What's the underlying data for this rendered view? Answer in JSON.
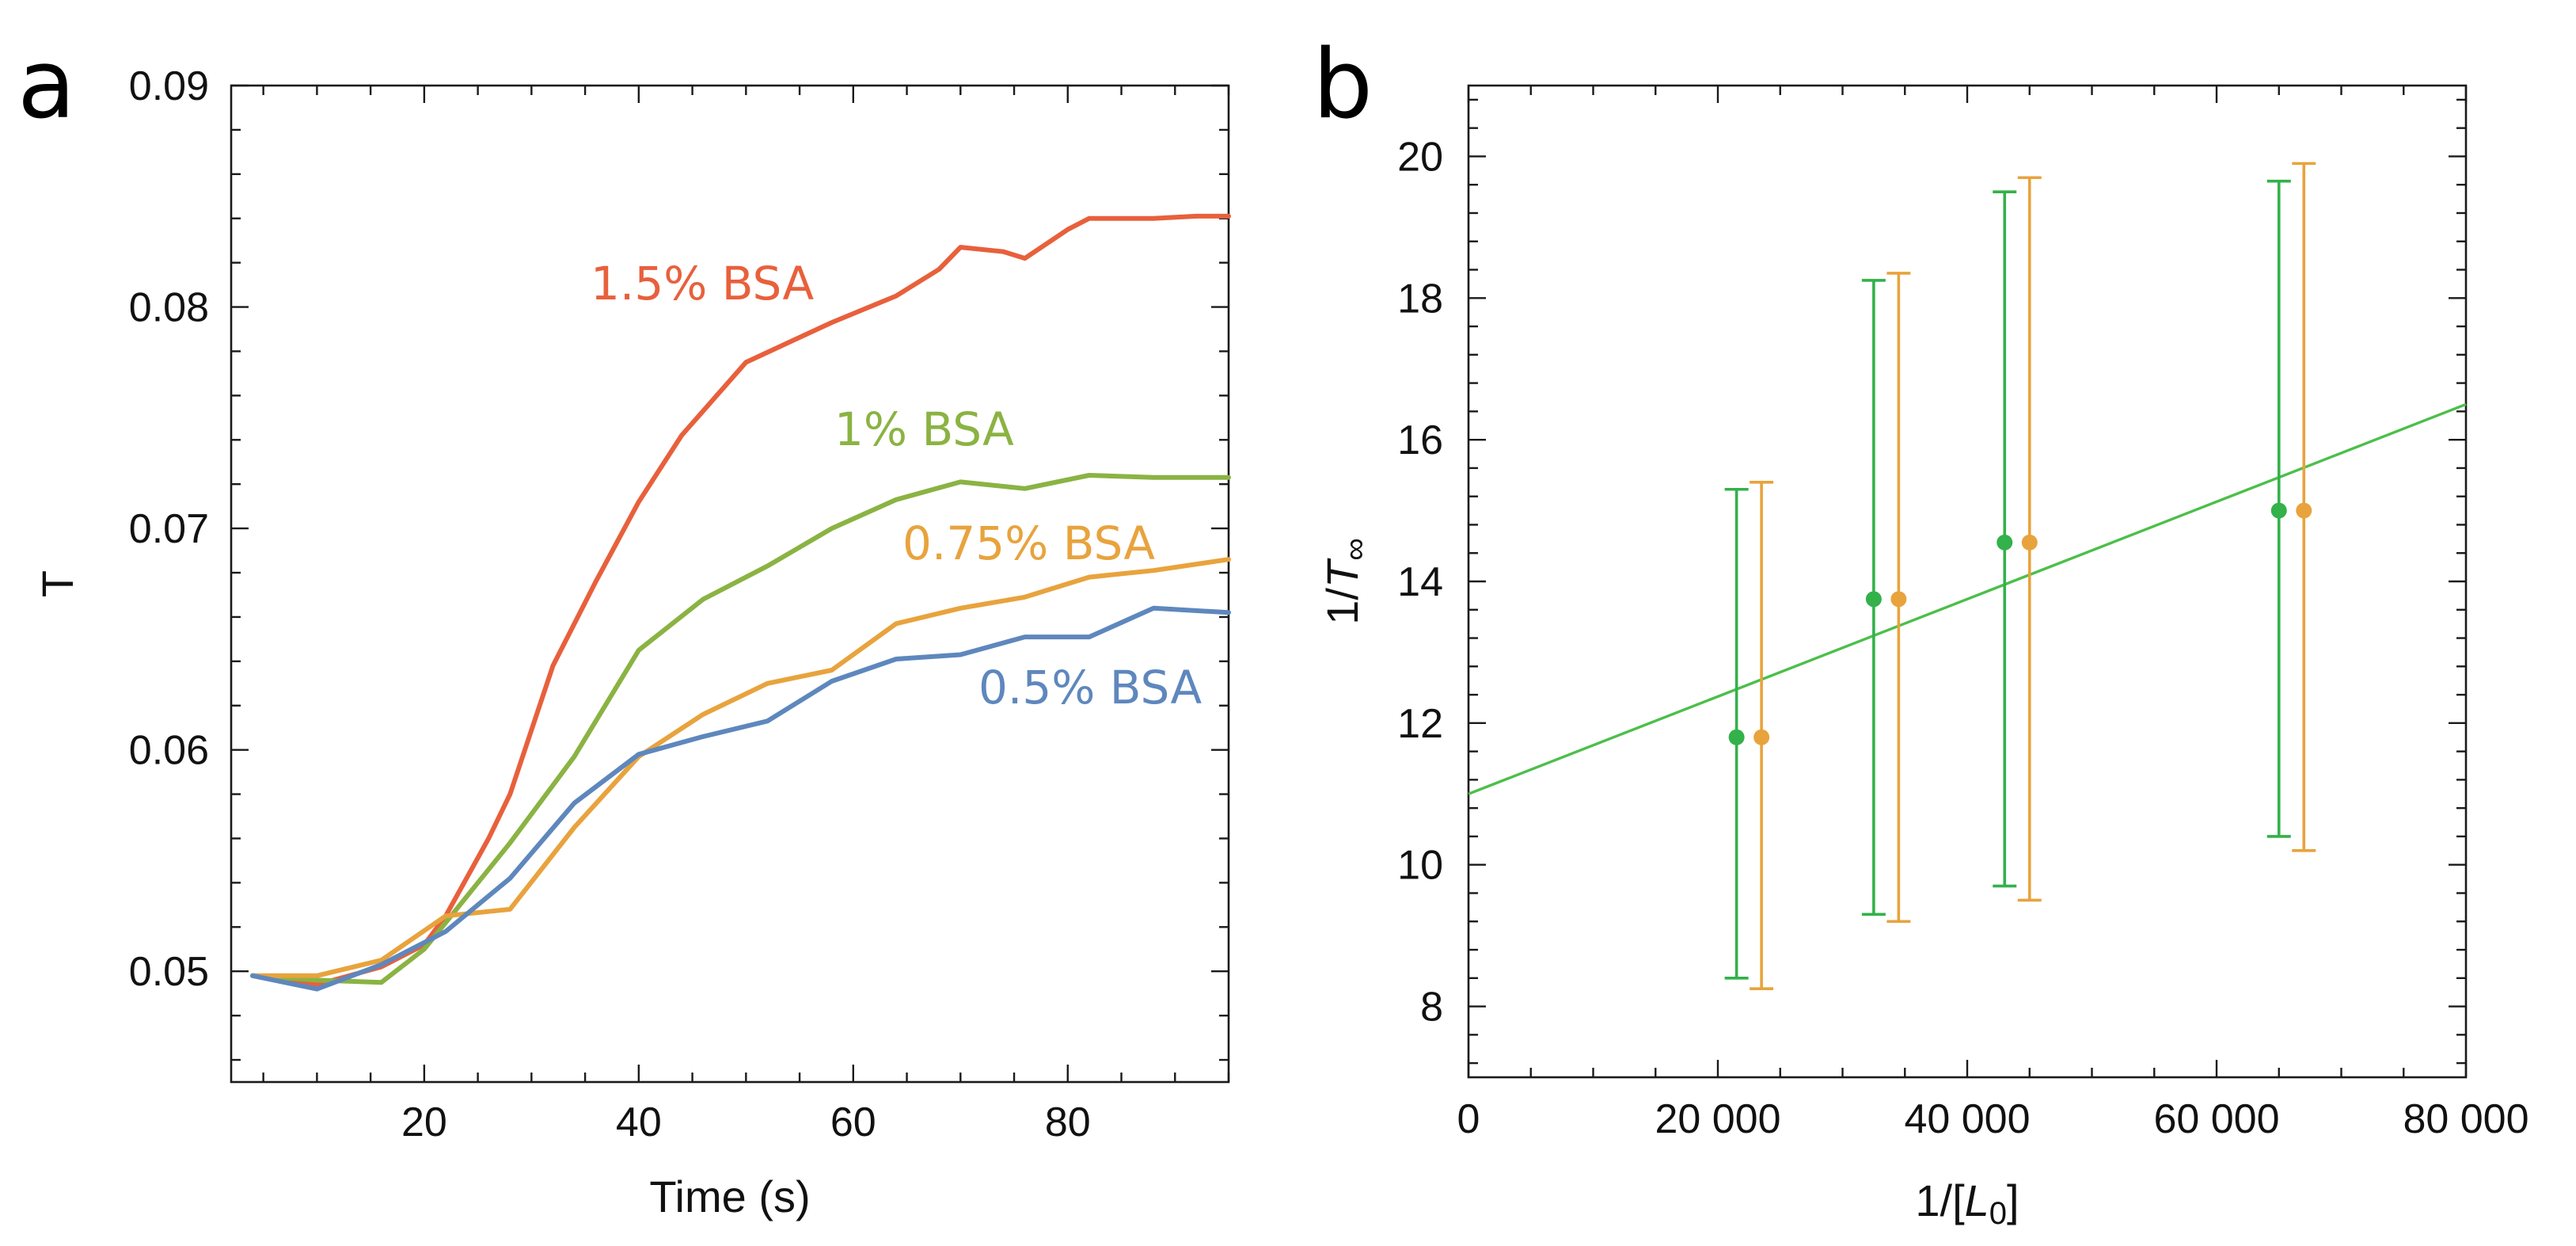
{
  "chart_data": [
    {
      "panel": "a",
      "type": "line",
      "title": "",
      "xlabel": "Time (s)",
      "ylabel": "T",
      "xlim": [
        2,
        95
      ],
      "ylim": [
        0.045,
        0.09
      ],
      "x_ticks": [
        20,
        40,
        60,
        80
      ],
      "y_ticks": [
        0.05,
        0.06,
        0.07,
        0.08,
        0.09
      ],
      "x_tick_labels": [
        "20",
        "40",
        "60",
        "80"
      ],
      "y_tick_labels": [
        "0.05",
        "0.06",
        "0.07",
        "0.08",
        "0.09"
      ],
      "series": [
        {
          "name": "1.5% BSA",
          "label": "1.5% BSA",
          "color": "#E8603C",
          "x": [
            4,
            10,
            16,
            20,
            22,
            26,
            28,
            32,
            36,
            40,
            44,
            50,
            58,
            64,
            68,
            70,
            74,
            76,
            80,
            82,
            86,
            88,
            92,
            95
          ],
          "y": [
            0.0498,
            0.0494,
            0.0502,
            0.0512,
            0.0525,
            0.056,
            0.058,
            0.0638,
            0.0676,
            0.0712,
            0.0742,
            0.0775,
            0.0793,
            0.0805,
            0.0817,
            0.0827,
            0.0825,
            0.0822,
            0.0835,
            0.084,
            0.084,
            0.084,
            0.0841,
            0.0841
          ]
        },
        {
          "name": "1% BSA",
          "label": "1% BSA",
          "color": "#8AB343",
          "x": [
            4,
            10,
            16,
            20,
            22,
            28,
            34,
            40,
            46,
            52,
            58,
            64,
            70,
            76,
            82,
            88,
            95
          ],
          "y": [
            0.0498,
            0.0496,
            0.0495,
            0.051,
            0.0522,
            0.0558,
            0.0597,
            0.0645,
            0.0668,
            0.0683,
            0.07,
            0.0713,
            0.0721,
            0.0718,
            0.0724,
            0.0723,
            0.0723
          ]
        },
        {
          "name": "0.75% BSA",
          "label": "0.75% BSA",
          "color": "#E8A33D",
          "x": [
            4,
            10,
            16,
            22,
            28,
            34,
            40,
            46,
            52,
            58,
            64,
            70,
            76,
            82,
            88,
            95
          ],
          "y": [
            0.0498,
            0.0498,
            0.0505,
            0.0525,
            0.0528,
            0.0565,
            0.0597,
            0.0616,
            0.063,
            0.0636,
            0.0657,
            0.0664,
            0.0669,
            0.0678,
            0.0681,
            0.0686
          ]
        },
        {
          "name": "0.5% BSA",
          "label": "0.5% BSA",
          "color": "#5E87BD",
          "x": [
            4,
            10,
            16,
            22,
            28,
            34,
            40,
            46,
            52,
            58,
            64,
            70,
            76,
            82,
            88,
            95
          ],
          "y": [
            0.0498,
            0.0492,
            0.0503,
            0.0518,
            0.0542,
            0.0576,
            0.0598,
            0.0606,
            0.0613,
            0.0631,
            0.0641,
            0.0643,
            0.0651,
            0.0651,
            0.0664,
            0.0662
          ]
        }
      ]
    },
    {
      "panel": "b",
      "type": "scatter",
      "title": "",
      "xlabel": "1/[L0]",
      "ylabel": "1/T∞",
      "xlim": [
        0,
        80000
      ],
      "ylim": [
        7,
        21
      ],
      "x_ticks": [
        0,
        20000,
        40000,
        60000,
        80000
      ],
      "y_ticks": [
        8,
        10,
        12,
        14,
        16,
        18,
        20
      ],
      "x_tick_labels": [
        "0",
        "20 000",
        "40 000",
        "60 000",
        "80 000"
      ],
      "y_tick_labels": [
        "8",
        "10",
        "12",
        "14",
        "16",
        "18",
        "20"
      ],
      "series": [
        {
          "name": "green",
          "color": "#33B14A",
          "x": [
            21500,
            32500,
            43000,
            65000
          ],
          "y": [
            11.8,
            13.75,
            14.55,
            15.0
          ],
          "err_low": [
            8.4,
            9.3,
            9.7,
            10.4
          ],
          "err_high": [
            15.3,
            18.25,
            19.5,
            19.65
          ]
        },
        {
          "name": "orange",
          "color": "#E8A33D",
          "x": [
            23500,
            34500,
            45000,
            67000
          ],
          "y": [
            11.8,
            13.75,
            14.55,
            15.0
          ],
          "err_low": [
            8.25,
            9.2,
            9.5,
            10.2
          ],
          "err_high": [
            15.4,
            18.35,
            19.7,
            19.9
          ]
        }
      ],
      "fit_line": {
        "color": "#4CBF4A",
        "x": [
          0,
          80000
        ],
        "y": [
          11.0,
          16.5
        ]
      }
    }
  ],
  "labels": {
    "panel_a": "a",
    "panel_b": "b",
    "a_xlabel": "Time (s)",
    "a_ylabel": "T",
    "b_xlabel_prefix": "1/[",
    "b_xlabel_var": "L",
    "b_xlabel_sub": "0",
    "b_xlabel_suffix": "]",
    "b_ylabel_prefix": "1/",
    "b_ylabel_var": "T",
    "b_ylabel_sub": "∞"
  }
}
